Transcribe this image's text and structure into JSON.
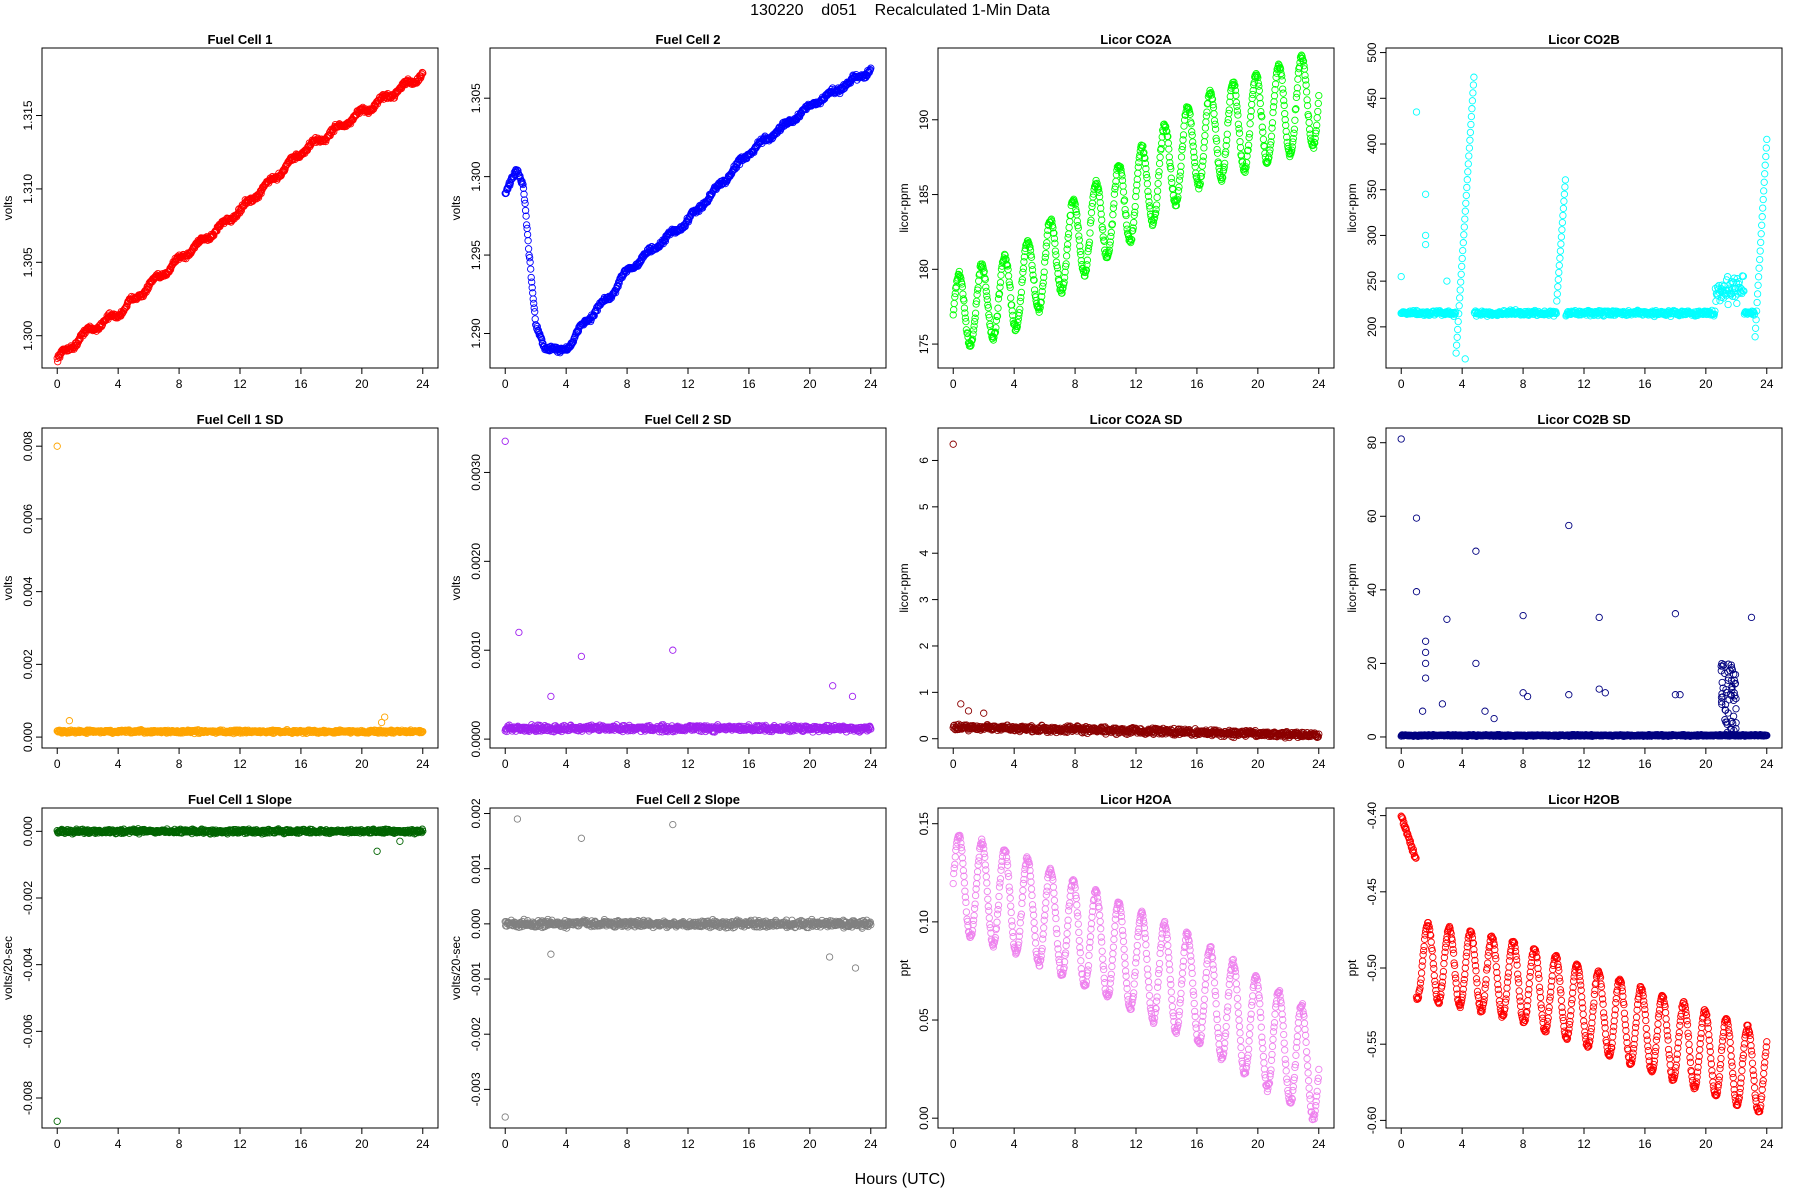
{
  "page_title": "130220    d051    Recalculated 1-Min Data",
  "xlabel": "Hours (UTC)",
  "chart_data": [
    {
      "type": "scatter",
      "title": "Fuel Cell 1",
      "ylabel": "volts",
      "color": "#ff0000",
      "xlim": [
        -1,
        25
      ],
      "xticks": [
        0,
        4,
        8,
        12,
        16,
        20,
        24
      ],
      "ylim": [
        1.2978,
        1.3196
      ],
      "yticks": [
        1.3,
        1.305,
        1.31,
        1.315
      ],
      "yticklabels": [
        "1.300",
        "1.305",
        "1.310",
        "1.315"
      ],
      "series_model": {
        "kind": "curve",
        "points": [
          [
            0,
            1.2984
          ],
          [
            2,
            1.3003
          ],
          [
            4,
            1.3015
          ],
          [
            8,
            1.3052
          ],
          [
            12,
            1.3085
          ],
          [
            16,
            1.3125
          ],
          [
            20,
            1.3152
          ],
          [
            24,
            1.3178
          ]
        ],
        "jitter": 0.00025,
        "step": 0.0008
      }
    },
    {
      "type": "scatter",
      "title": "Fuel Cell 2",
      "ylabel": "volts",
      "color": "#0000ff",
      "xlim": [
        -1,
        25
      ],
      "xticks": [
        0,
        4,
        8,
        12,
        16,
        20,
        24
      ],
      "ylim": [
        1.2878,
        1.3082
      ],
      "yticks": [
        1.29,
        1.295,
        1.3,
        1.305
      ],
      "yticklabels": [
        "1.290",
        "1.295",
        "1.300",
        "1.305"
      ],
      "series_model": {
        "kind": "curve",
        "points": [
          [
            0,
            1.2988
          ],
          [
            0.8,
            1.3005
          ],
          [
            1.2,
            1.2995
          ],
          [
            1.7,
            1.2935
          ],
          [
            2.0,
            1.2905
          ],
          [
            2.6,
            1.2892
          ],
          [
            3.5,
            1.2888
          ],
          [
            4.5,
            1.2895
          ],
          [
            5,
            1.2905
          ],
          [
            7,
            1.2925
          ],
          [
            8,
            1.294
          ],
          [
            12,
            1.2972
          ],
          [
            16,
            1.3015
          ],
          [
            20,
            1.3045
          ],
          [
            24,
            1.3068
          ]
        ],
        "jitter": 0.00025,
        "step": 0.0006
      }
    },
    {
      "type": "scatter",
      "title": "Licor CO2A",
      "ylabel": "licor-ppm",
      "color": "#00ff00",
      "xlim": [
        -1,
        25
      ],
      "xticks": [
        0,
        4,
        8,
        12,
        16,
        20,
        24
      ],
      "ylim": [
        173.4,
        194.8
      ],
      "yticks": [
        175,
        180,
        185,
        190
      ],
      "yticklabels": [
        "175",
        "180",
        "185",
        "190"
      ],
      "series_model": {
        "kind": "sine",
        "points": [
          [
            0,
            177
          ],
          [
            4,
            178.5
          ],
          [
            8,
            182
          ],
          [
            12,
            185
          ],
          [
            16,
            188.5
          ],
          [
            20,
            190
          ],
          [
            24,
            191.5
          ]
        ],
        "period": 1.5,
        "amp_start": 2.5,
        "amp_end": 3.2,
        "jitter": 0.3
      }
    },
    {
      "type": "scatter",
      "title": "Licor CO2B",
      "ylabel": "licor-ppm",
      "color": "#00ffff",
      "xlim": [
        -1,
        25
      ],
      "xticks": [
        0,
        4,
        8,
        12,
        16,
        20,
        24
      ],
      "ylim": [
        155,
        505
      ],
      "yticks": [
        200,
        250,
        300,
        350,
        400,
        450,
        500
      ],
      "yticklabels": [
        "200",
        "250",
        "300",
        "350",
        "400",
        "450",
        "500"
      ],
      "series_model": {
        "kind": "co2b",
        "base": 215,
        "jitter": 4
      }
    },
    {
      "type": "scatter",
      "title": "Fuel Cell 1 SD",
      "ylabel": "volts",
      "color": "#ffa500",
      "xlim": [
        -1,
        25
      ],
      "xticks": [
        0,
        4,
        8,
        12,
        16,
        20,
        24
      ],
      "ylim": [
        -0.0003,
        0.0085
      ],
      "yticks": [
        0,
        0.002,
        0.004,
        0.006,
        0.008
      ],
      "yticklabels": [
        "0.000",
        "0.002",
        "0.004",
        "0.006",
        "0.008"
      ],
      "series_model": {
        "kind": "noise",
        "base": 0.00015,
        "jitter": 6e-05,
        "outliers": [
          [
            0,
            0.008
          ],
          [
            0.8,
            0.00045
          ],
          [
            21.5,
            0.00055
          ],
          [
            21.3,
            0.0004
          ]
        ]
      }
    },
    {
      "type": "scatter",
      "title": "Fuel Cell 2 SD",
      "ylabel": "volts",
      "color": "#a020f0",
      "xlim": [
        -1,
        25
      ],
      "xticks": [
        0,
        4,
        8,
        12,
        16,
        20,
        24
      ],
      "ylim": [
        -0.0001,
        0.0035
      ],
      "yticks": [
        0,
        0.001,
        0.002,
        0.003
      ],
      "yticklabels": [
        "0.0000",
        "0.0010",
        "0.0020",
        "0.0030"
      ],
      "series_model": {
        "kind": "noise",
        "base": 0.00012,
        "jitter": 5e-05,
        "outliers": [
          [
            0,
            0.00335
          ],
          [
            0.9,
            0.0012
          ],
          [
            5,
            0.00093
          ],
          [
            11,
            0.001
          ],
          [
            3,
            0.00048
          ],
          [
            21.5,
            0.0006
          ],
          [
            22.8,
            0.00048
          ]
        ]
      }
    },
    {
      "type": "scatter",
      "title": "Licor CO2A SD",
      "ylabel": "licor-ppm",
      "color": "#8b0000",
      "xlim": [
        -1,
        25
      ],
      "xticks": [
        0,
        4,
        8,
        12,
        16,
        20,
        24
      ],
      "ylim": [
        -0.2,
        6.7
      ],
      "yticks": [
        0,
        1,
        2,
        3,
        4,
        5,
        6
      ],
      "yticklabels": [
        "0",
        "1",
        "2",
        "3",
        "4",
        "5",
        "6"
      ],
      "series_model": {
        "kind": "decay",
        "start": 0.25,
        "end": 0.08,
        "jitter": 0.1,
        "outliers": [
          [
            0,
            6.35
          ],
          [
            0.5,
            0.75
          ],
          [
            1,
            0.6
          ],
          [
            2,
            0.55
          ]
        ]
      }
    },
    {
      "type": "scatter",
      "title": "Licor CO2B SD",
      "ylabel": "licor-ppm",
      "color": "#000080",
      "xlim": [
        -1,
        25
      ],
      "xticks": [
        0,
        4,
        8,
        12,
        16,
        20,
        24
      ],
      "ylim": [
        -3,
        84
      ],
      "yticks": [
        0,
        20,
        40,
        60,
        80
      ],
      "yticklabels": [
        "0",
        "20",
        "40",
        "60",
        "80"
      ],
      "series_model": {
        "kind": "noise",
        "base": 0.4,
        "jitter": 0.3,
        "outliers": [
          [
            0,
            81
          ],
          [
            1,
            59.5
          ],
          [
            1,
            39.5
          ],
          [
            4.9,
            50.5
          ],
          [
            11,
            57.5
          ],
          [
            1.6,
            26
          ],
          [
            1.6,
            23
          ],
          [
            1.6,
            20
          ],
          [
            1.6,
            16
          ],
          [
            3,
            32
          ],
          [
            4.9,
            20
          ],
          [
            8,
            33
          ],
          [
            13,
            32.5
          ],
          [
            18,
            33.5
          ],
          [
            23,
            32.5
          ],
          [
            8,
            12
          ],
          [
            8.3,
            11
          ],
          [
            11,
            11.5
          ],
          [
            13,
            13
          ],
          [
            13.4,
            12
          ],
          [
            18,
            11.5
          ],
          [
            18.3,
            11.5
          ],
          [
            2.7,
            9
          ],
          [
            5.5,
            7
          ],
          [
            1.4,
            7
          ],
          [
            6.1,
            5
          ]
        ],
        "cluster": [
          21,
          22,
          0,
          20
        ]
      }
    },
    {
      "type": "scatter",
      "title": "Fuel Cell 1 Slope",
      "ylabel": "volts/20-sec",
      "color": "#006400",
      "xlim": [
        -1,
        25
      ],
      "xticks": [
        0,
        4,
        8,
        12,
        16,
        20,
        24
      ],
      "ylim": [
        -0.0089,
        0.0007
      ],
      "yticks": [
        0,
        -0.002,
        -0.004,
        -0.006,
        -0.008
      ],
      "yticklabels": [
        "0.000",
        "-0.002",
        "-0.004",
        "-0.006",
        "-0.008"
      ],
      "series_model": {
        "kind": "noise",
        "base": 0,
        "jitter": 9e-05,
        "outliers": [
          [
            0,
            -0.0087
          ],
          [
            21,
            -0.0006
          ],
          [
            22.5,
            -0.0003
          ]
        ]
      }
    },
    {
      "type": "scatter",
      "title": "Fuel Cell 2 Slope",
      "ylabel": "volts/20-sec",
      "color": "#808080",
      "xlim": [
        -1,
        25
      ],
      "xticks": [
        0,
        4,
        8,
        12,
        16,
        20,
        24
      ],
      "ylim": [
        -0.0037,
        0.0021
      ],
      "yticks": [
        0.002,
        0.001,
        0,
        -0.001,
        -0.002,
        -0.003
      ],
      "yticklabels": [
        "0.002",
        "0.001",
        "0.000",
        "-0.001",
        "-0.002",
        "-0.003"
      ],
      "series_model": {
        "kind": "noise",
        "base": 0,
        "jitter": 9e-05,
        "outliers": [
          [
            0,
            -0.0035
          ],
          [
            0.8,
            0.0019
          ],
          [
            5,
            0.00155
          ],
          [
            11,
            0.0018
          ],
          [
            3,
            -0.00055
          ],
          [
            21.3,
            -0.0006
          ],
          [
            23,
            -0.0008
          ]
        ]
      }
    },
    {
      "type": "scatter",
      "title": "Licor H2OA",
      "ylabel": "ppt",
      "color": "#ee82ee",
      "xlim": [
        -1,
        25
      ],
      "xticks": [
        0,
        4,
        8,
        12,
        16,
        20,
        24
      ],
      "ylim": [
        -0.005,
        0.158
      ],
      "yticks": [
        0,
        0.05,
        0.1,
        0.15
      ],
      "yticklabels": [
        "0.00",
        "0.05",
        "0.10",
        "0.15"
      ],
      "series_model": {
        "kind": "sine",
        "points": [
          [
            0,
            0.12
          ],
          [
            4,
            0.11
          ],
          [
            8,
            0.095
          ],
          [
            12,
            0.08
          ],
          [
            16,
            0.065
          ],
          [
            20,
            0.045
          ],
          [
            24,
            0.025
          ]
        ],
        "period": 1.5,
        "amp_start": 0.025,
        "amp_end": 0.027,
        "jitter": 0.002
      }
    },
    {
      "type": "scatter",
      "title": "Licor H2OB",
      "ylabel": "ppt",
      "color": "#ff0000",
      "xlim": [
        -1,
        25
      ],
      "xticks": [
        0,
        4,
        8,
        12,
        16,
        20,
        24
      ],
      "ylim": [
        -0.605,
        -0.395
      ],
      "yticks": [
        -0.4,
        -0.45,
        -0.5,
        -0.55,
        -0.6
      ],
      "yticklabels": [
        "-0.40",
        "-0.45",
        "-0.50",
        "-0.55",
        "-0.60"
      ],
      "series_model": {
        "kind": "h2ob",
        "points": [
          [
            1,
            -0.495
          ],
          [
            4,
            -0.5
          ],
          [
            8,
            -0.51
          ],
          [
            12,
            -0.525
          ],
          [
            16,
            -0.54
          ],
          [
            20,
            -0.555
          ],
          [
            24,
            -0.57
          ]
        ],
        "period": 1.4,
        "amp_start": 0.025,
        "amp_end": 0.027,
        "jitter": 0.002
      }
    }
  ]
}
